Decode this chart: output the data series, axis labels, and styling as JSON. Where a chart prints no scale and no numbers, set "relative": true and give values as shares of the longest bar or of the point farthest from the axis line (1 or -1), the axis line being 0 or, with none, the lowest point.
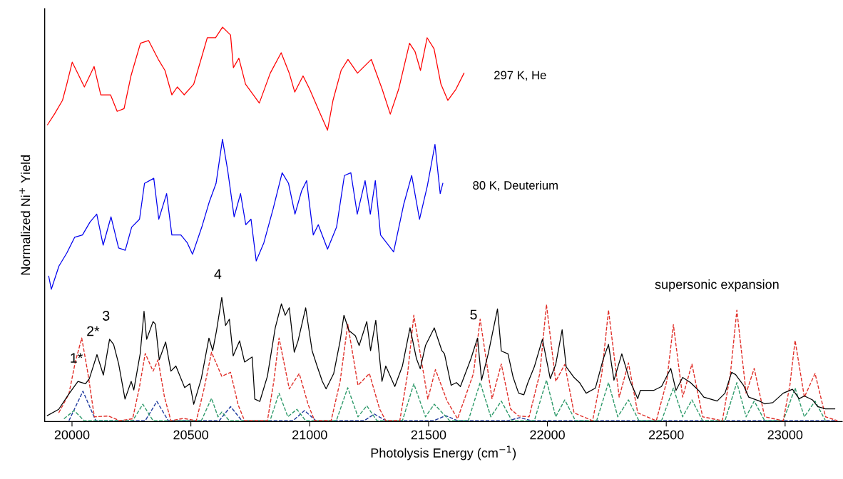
{
  "chart_data": {
    "type": "line",
    "relative": true,
    "xlabel": "Photolysis Energy (cm$^{−1}$)",
    "ylabel": "Normalized Ni$^{+}$ Yield",
    "xlim": [
      19885,
      23240
    ],
    "xticks": [
      20000,
      20500,
      21000,
      21500,
      22000,
      22500,
      23000
    ],
    "grid": false,
    "legend": false,
    "annotations": [
      "supersonic expansion",
      {
        "text": "1*",
        "x": 20035,
        "y": 0.1
      },
      {
        "text": "2*",
        "x": 20105,
        "y": 0.168
      },
      {
        "text": "3",
        "x": 20160,
        "y": 0.207
      },
      {
        "text": "4",
        "x": 20630,
        "y": 0.313
      },
      {
        "text": "5",
        "x": 21706,
        "y": 0.21
      }
    ],
    "series": [
      {
        "name": "297 K, He",
        "color": "#ff0000",
        "line_style": "solid",
        "x": [
          19897,
          19926,
          19960,
          19978,
          20001,
          20024,
          20052,
          20093,
          20121,
          20162,
          20190,
          20219,
          20248,
          20288,
          20322,
          20363,
          20391,
          20420,
          20443,
          20472,
          20512,
          20546,
          20569,
          20604,
          20633,
          20667,
          20679,
          20702,
          20730,
          20788,
          20834,
          20880,
          20914,
          20937,
          20972,
          21000,
          21040,
          21075,
          21098,
          21132,
          21161,
          21201,
          21259,
          21305,
          21339,
          21374,
          21420,
          21443,
          21466,
          21494,
          21523,
          21552,
          21581,
          21615,
          21649
        ],
        "values": [
          0.752,
          0.779,
          0.814,
          0.855,
          0.911,
          0.883,
          0.848,
          0.9,
          0.828,
          0.828,
          0.786,
          0.793,
          0.876,
          0.959,
          0.966,
          0.918,
          0.89,
          0.828,
          0.848,
          0.828,
          0.855,
          0.925,
          0.973,
          0.973,
          1,
          0.98,
          0.897,
          0.921,
          0.855,
          0.807,
          0.883,
          0.935,
          0.883,
          0.835,
          0.876,
          0.842,
          0.786,
          0.738,
          0.814,
          0.89,
          0.918,
          0.883,
          0.918,
          0.842,
          0.779,
          0.842,
          0.959,
          0.938,
          0.89,
          0.973,
          0.945,
          0.855,
          0.814,
          0.842,
          0.883
        ]
      },
      {
        "name": "80 K, Deuterium",
        "color": "#0000ee",
        "line_style": "solid",
        "x": [
          19902,
          19913,
          19945,
          19978,
          20011,
          20044,
          20076,
          20104,
          20131,
          20164,
          20196,
          20224,
          20251,
          20284,
          20305,
          20344,
          20365,
          20398,
          20420,
          20458,
          20485,
          20507,
          20546,
          20578,
          20606,
          20633,
          20655,
          20682,
          20709,
          20731,
          20753,
          20775,
          20807,
          20846,
          20884,
          20911,
          20938,
          20966,
          20987,
          21015,
          21036,
          21075,
          21113,
          21146,
          21173,
          21200,
          21233,
          21255,
          21276,
          21298,
          21353,
          21396,
          21429,
          21462,
          21495,
          21527,
          21549,
          21560
        ],
        "values": [
          0.367,
          0.334,
          0.393,
          0.426,
          0.466,
          0.472,
          0.505,
          0.525,
          0.446,
          0.518,
          0.439,
          0.433,
          0.492,
          0.512,
          0.603,
          0.616,
          0.512,
          0.577,
          0.472,
          0.472,
          0.452,
          0.423,
          0.492,
          0.557,
          0.603,
          0.715,
          0.636,
          0.518,
          0.577,
          0.498,
          0.512,
          0.406,
          0.452,
          0.538,
          0.63,
          0.603,
          0.525,
          0.584,
          0.61,
          0.472,
          0.498,
          0.436,
          0.492,
          0.623,
          0.63,
          0.525,
          0.61,
          0.525,
          0.61,
          0.472,
          0.429,
          0.551,
          0.623,
          0.512,
          0.597,
          0.702,
          0.577,
          0.603
        ]
      },
      {
        "color": "#000000",
        "line_style": "solid",
        "x": [
          19896,
          19944,
          19987,
          20025,
          20057,
          20073,
          20105,
          20132,
          20158,
          20175,
          20196,
          20223,
          20249,
          20260,
          20287,
          20303,
          20314,
          20341,
          20351,
          20367,
          20394,
          20416,
          20437,
          20474,
          20496,
          20512,
          20544,
          20576,
          20592,
          20608,
          20630,
          20646,
          20662,
          20678,
          20705,
          20726,
          20758,
          20769,
          20790,
          20822,
          20855,
          20881,
          20897,
          20914,
          20935,
          20951,
          20983,
          21010,
          21031,
          21053,
          21069,
          21101,
          21128,
          21144,
          21165,
          21192,
          21208,
          21240,
          21256,
          21278,
          21304,
          21320,
          21358,
          21390,
          21422,
          21449,
          21465,
          21487,
          21524,
          21556,
          21567,
          21595,
          21617,
          21634,
          21678,
          21706,
          21723,
          21751,
          21790,
          21806,
          21834,
          21856,
          21879,
          21901,
          21918,
          21945,
          21979,
          22012,
          22035,
          22062,
          22079,
          22112,
          22135,
          22163,
          22202,
          22235,
          22257,
          22280,
          22313,
          22346,
          22380,
          22391,
          22447,
          22480,
          22519,
          22541,
          22569,
          22602,
          22636,
          22658,
          22714,
          22747,
          22775,
          22792,
          22825,
          22847,
          22892,
          22914,
          22948,
          22992,
          23031,
          23059,
          23081,
          23115,
          23137,
          23170,
          23209
        ],
        "values": [
          0.013,
          0.029,
          0.068,
          0.1,
          0.094,
          0.107,
          0.168,
          0.116,
          0.207,
          0.194,
          0.145,
          0.055,
          0.1,
          0.078,
          0.171,
          0.278,
          0.207,
          0.252,
          0.245,
          0.155,
          0.2,
          0.126,
          0.139,
          0.084,
          0.094,
          0.042,
          0.107,
          0.21,
          0.178,
          0.229,
          0.313,
          0.242,
          0.258,
          0.165,
          0.203,
          0.149,
          0.162,
          0.055,
          0.049,
          0.113,
          0.236,
          0.297,
          0.268,
          0.287,
          0.174,
          0.203,
          0.287,
          0.178,
          0.139,
          0.1,
          0.081,
          0.12,
          0.203,
          0.268,
          0.229,
          0.216,
          0.191,
          0.252,
          0.178,
          0.255,
          0.1,
          0.139,
          0.087,
          0.139,
          0.236,
          0.158,
          0.132,
          0.191,
          0.236,
          0.178,
          0.17,
          0.09,
          0.097,
          0.087,
          0.157,
          0.21,
          0.103,
          0.17,
          0.284,
          0.177,
          0.17,
          0.11,
          0.07,
          0.066,
          0.097,
          0.137,
          0.207,
          0.107,
          0.143,
          0.231,
          0.137,
          0.11,
          0.097,
          0.07,
          0.083,
          0.157,
          0.194,
          0.103,
          0.17,
          0.103,
          0.056,
          0.077,
          0.077,
          0.087,
          0.133,
          0.077,
          0.11,
          0.097,
          0.077,
          0.06,
          0.05,
          0.07,
          0.123,
          0.117,
          0.09,
          0.06,
          0.05,
          0.043,
          0.046,
          0.07,
          0.08,
          0.056,
          0.063,
          0.053,
          0.036,
          0.03,
          0.03
        ]
      },
      {
        "color": "#e0302a",
        "line_style": "dashed",
        "x": [
          19944,
          19987,
          20014,
          20041,
          20067,
          20094,
          20153,
          20201,
          20255,
          20282,
          20308,
          20341,
          20362,
          20389,
          20416,
          20469,
          20523,
          20555,
          20587,
          20630,
          20667,
          20699,
          20726,
          20822,
          20849,
          20871,
          20914,
          20956,
          20994,
          21021,
          21090,
          21128,
          21160,
          21203,
          21251,
          21294,
          21320,
          21379,
          21412,
          21438,
          21497,
          21529,
          21578,
          21622,
          21689,
          21717,
          21767,
          21806,
          21845,
          21879,
          21923,
          21968,
          21996,
          22035,
          22073,
          22112,
          22190,
          22229,
          22257,
          22302,
          22341,
          22380,
          22458,
          22502,
          22530,
          22569,
          22608,
          22653,
          22736,
          22770,
          22797,
          22836,
          22870,
          22914,
          22992,
          23020,
          23042,
          23081,
          23126,
          23170,
          23220
        ],
        "values": [
          0.02,
          0.068,
          0.15,
          0.21,
          0.12,
          0.01,
          0.012,
          0,
          0.005,
          0.08,
          0.171,
          0.126,
          0.155,
          0.06,
          0,
          0.006,
          0,
          0.08,
          0.174,
          0.113,
          0.123,
          0.04,
          0,
          0,
          0.1,
          0.21,
          0.081,
          0.12,
          0.04,
          0,
          0,
          0.1,
          0.245,
          0.09,
          0.12,
          0.03,
          0,
          0,
          0.12,
          0.268,
          0.055,
          0.13,
          0.05,
          0.005,
          0.12,
          0.258,
          0.056,
          0.144,
          0.03,
          0.012,
          0.01,
          0.12,
          0.295,
          0.1,
          0.143,
          0.02,
          0,
          0.12,
          0.281,
          0.06,
          0.147,
          0.02,
          0,
          0.1,
          0.244,
          0.06,
          0.144,
          0.01,
          0,
          0.12,
          0.281,
          0.07,
          0.133,
          0.01,
          0,
          0.09,
          0.204,
          0.06,
          0.12,
          0.01,
          0
        ]
      },
      {
        "color": "#2e9a6a",
        "line_style": "dashed",
        "x": [
          19966,
          20009,
          20051,
          20255,
          20298,
          20341,
          20544,
          20587,
          20614,
          20630,
          20662,
          20833,
          20871,
          20908,
          20946,
          20983,
          21112,
          21160,
          21203,
          21240,
          21283,
          21390,
          21438,
          21487,
          21524,
          21589,
          21667,
          21717,
          21762,
          21806,
          21851,
          21945,
          21996,
          22035,
          22073,
          22118,
          22207,
          22257,
          22296,
          22341,
          22385,
          22480,
          22530,
          22569,
          22608,
          22653,
          22747,
          22797,
          22836,
          22870,
          22914,
          22992,
          23042,
          23081,
          23126,
          23170
        ],
        "values": [
          0.005,
          0.026,
          0,
          0,
          0.042,
          0,
          0,
          0.057,
          0.01,
          0.022,
          0,
          0,
          0.07,
          0.01,
          0.029,
          0,
          0,
          0.084,
          0.01,
          0.038,
          0,
          0,
          0.094,
          0.01,
          0.042,
          0,
          0,
          0.097,
          0.01,
          0.05,
          0,
          0,
          0.103,
          0.01,
          0.053,
          0,
          0,
          0.097,
          0.01,
          0.053,
          0,
          0,
          0.083,
          0.01,
          0.053,
          0,
          0,
          0.097,
          0.01,
          0.05,
          0,
          0,
          0.083,
          0.01,
          0.05,
          0
        ]
      },
      {
        "color": "#1f3a9e",
        "line_style": "dashed",
        "x": [
          19987,
          20046,
          20100,
          20308,
          20357,
          20405,
          20619,
          20667,
          20715,
          20930,
          20978,
          21026,
          21229,
          21272,
          21320,
          21522,
          21572,
          21622,
          21834,
          21884,
          21934,
          23220
        ],
        "values": [
          0,
          0.075,
          0,
          0,
          0.049,
          0,
          0,
          0.036,
          0,
          0,
          0.026,
          0,
          0,
          0.017,
          0,
          0,
          0.013,
          0,
          0,
          0.008,
          0,
          0
        ]
      }
    ]
  }
}
